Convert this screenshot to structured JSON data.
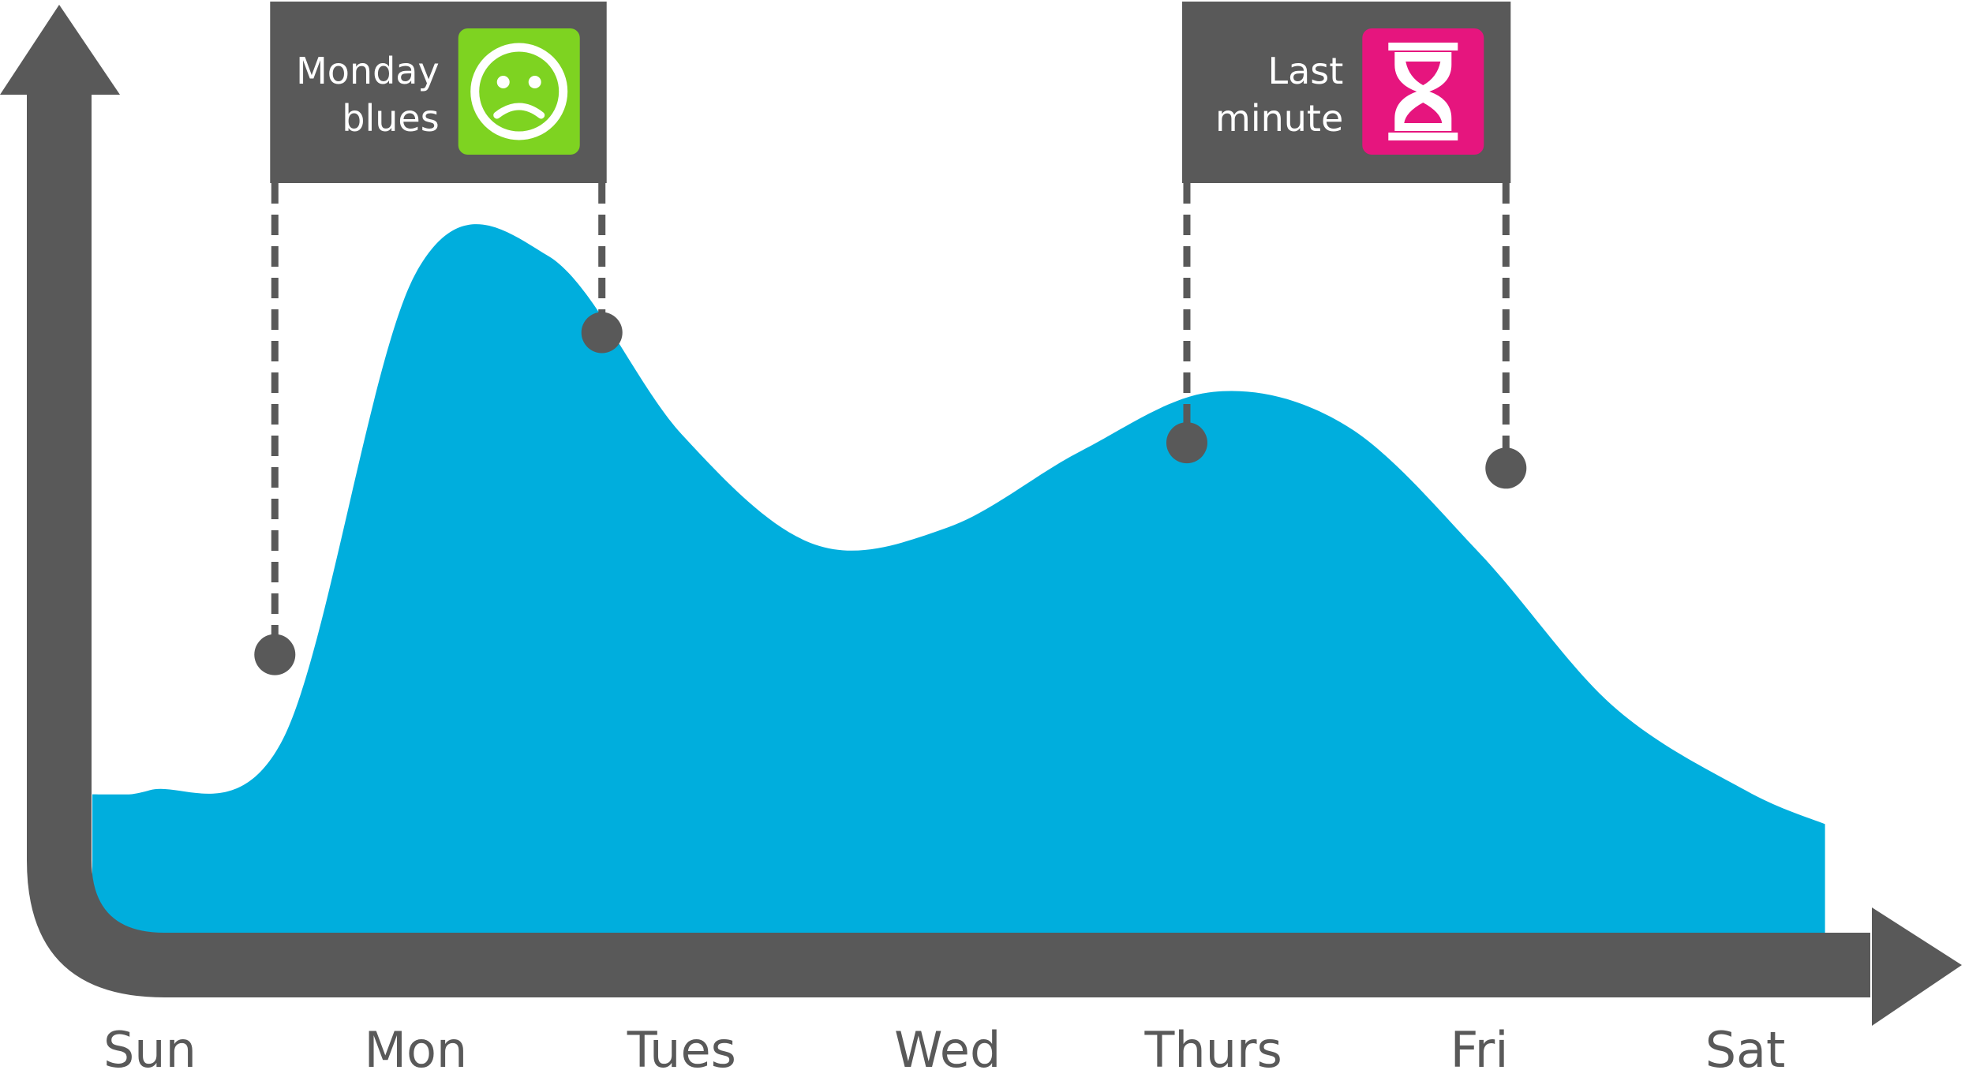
{
  "chart_data": {
    "type": "area",
    "title": "",
    "xlabel": "",
    "ylabel": "",
    "categories": [
      "Sun",
      "Mon",
      "Tues",
      "Wed",
      "Thurs",
      "Fri",
      "Sat"
    ],
    "x": [
      0.0,
      0.5,
      1.0,
      1.5,
      2.0,
      2.5,
      3.0,
      3.5,
      4.0,
      4.5,
      5.0,
      5.5,
      6.0,
      6.3
    ],
    "values": [
      17,
      23,
      78,
      80,
      59,
      46,
      48,
      57,
      64,
      60,
      45,
      27,
      17,
      13
    ],
    "ylim": [
      0,
      100
    ],
    "xlim": [
      -0.35,
      6.5
    ],
    "grid": false,
    "legend": "none",
    "colors": {
      "fill": "#00aedd",
      "axis": "#595959",
      "marker": "#595959",
      "callout_bg": "#595959"
    },
    "markers": [
      {
        "x": 0.47,
        "y": 33
      },
      {
        "x": 1.7,
        "y": 71
      },
      {
        "x": 3.9,
        "y": 58
      },
      {
        "x": 5.1,
        "y": 55
      }
    ],
    "annotations": [
      {
        "lines": [
          "Monday",
          "blues"
        ],
        "icon": "sad-face-icon",
        "icon_color": "#7ed321",
        "from_x": 0.47,
        "to_x": 1.7
      },
      {
        "lines": [
          "Last",
          "minute"
        ],
        "icon": "hourglass-icon",
        "icon_color": "#e6157e",
        "from_x": 3.9,
        "to_x": 5.1
      }
    ]
  }
}
